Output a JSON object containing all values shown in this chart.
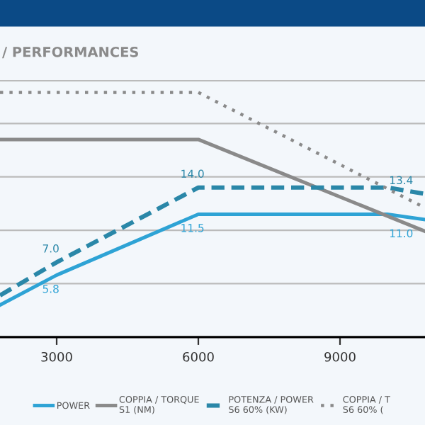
{
  "chart_data": {
    "type": "line",
    "subtitle": "/ PERFORMANCES",
    "x": [
      1800,
      3000,
      6000,
      10000,
      10800
    ],
    "xlim": [
      1800,
      10800
    ],
    "xticks": [
      3000,
      6000,
      9000
    ],
    "ylim": [
      0,
      24
    ],
    "yticks": [
      {
        "value": 5,
        "label": null
      },
      {
        "value": 10,
        "label": null
      },
      {
        "value": 15,
        "label": null
      },
      {
        "value": 20,
        "label": null
      }
    ],
    "tick_labels": "x",
    "grid": "y",
    "legend": "bottom",
    "marker": "none",
    "series": [
      {
        "name": "POWER",
        "color": "#2ea3d5",
        "line_style": "solid",
        "values": [
          3.0,
          5.8,
          11.5,
          11.5,
          11.0
        ],
        "value_labels": [
          null,
          "5.8",
          "11.5",
          null,
          "11.0"
        ]
      },
      {
        "name": "COPPIA / TORQUE\nS1 (NM)",
        "color": "#8a8a8a",
        "line_style": "solid",
        "x": [
          1800,
          6000,
          10800
        ],
        "values": [
          18.5,
          18.5,
          9.9
        ]
      },
      {
        "name": "POTENZA / POWER\nS6 60% (KW)",
        "color": "#2a87a8",
        "line_style": "dashed",
        "values": [
          3.9,
          7.0,
          14.0,
          14.0,
          13.4
        ],
        "value_labels": [
          null,
          "7.0",
          "14.0",
          null,
          "13.4"
        ]
      },
      {
        "name": "COPPIA / T\nS6 60% (",
        "color": "#8a8a8a",
        "line_style": "dotted",
        "x": [
          1800,
          6000,
          10800
        ],
        "values": [
          22.9,
          22.9,
          12.1
        ]
      }
    ]
  }
}
